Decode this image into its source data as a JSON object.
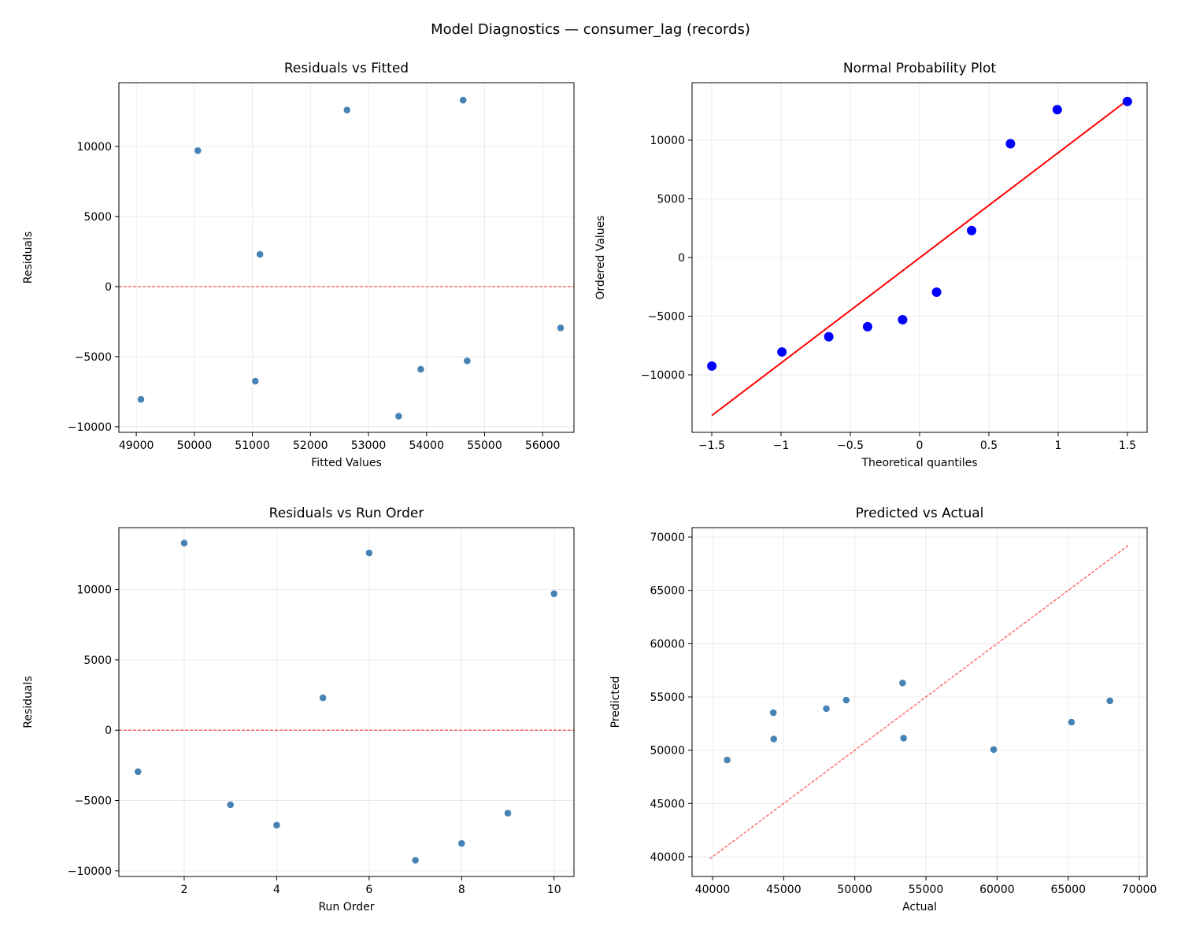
{
  "suptitle": "Model Diagnostics — consumer_lag (records)",
  "colors": {
    "points": "#4682b4",
    "qq_points": "#0000ff",
    "qq_line": "#ff0000",
    "ref_line": "#ff0000"
  },
  "chart_data": [
    {
      "type": "scatter",
      "title": "Residuals vs Fitted",
      "xlabel": "Fitted Values",
      "ylabel": "Residuals",
      "x": [
        49080,
        50060,
        51050,
        51130,
        52630,
        53520,
        53900,
        54630,
        54700,
        56310
      ],
      "y": [
        -8050,
        9700,
        -6750,
        2300,
        12600,
        -9250,
        -5900,
        13300,
        -5300,
        -2950
      ],
      "xlim": [
        48700,
        56540
      ],
      "ylim": [
        -10400,
        14550
      ],
      "xticks": [
        49000,
        50000,
        51000,
        52000,
        53000,
        54000,
        55000,
        56000
      ],
      "yticks": [
        -10000,
        -5000,
        0,
        5000,
        10000
      ],
      "hline": 0,
      "grid": true
    },
    {
      "type": "scatter",
      "title": "Normal Probability Plot",
      "xlabel": "Theoretical quantiles",
      "ylabel": "Ordered Values",
      "x": [
        -1.4993,
        -0.9935,
        -0.6554,
        -0.3754,
        -0.1226,
        0.1226,
        0.3754,
        0.6554,
        0.9935,
        1.4993
      ],
      "y": [
        -9250,
        -8050,
        -6750,
        -5900,
        -5300,
        -2950,
        2300,
        9700,
        12600,
        13300
      ],
      "xlim": [
        -1.642,
        1.642
      ],
      "ylim": [
        -14900,
        14900
      ],
      "xticks": [
        -1.5,
        -1.0,
        -0.5,
        0.0,
        0.5,
        1.0,
        1.5
      ],
      "yticks": [
        -10000,
        -5000,
        0,
        5000,
        10000
      ],
      "fit_line": true,
      "grid": true
    },
    {
      "type": "scatter",
      "title": "Residuals vs Run Order",
      "xlabel": "Run Order",
      "ylabel": "Residuals",
      "x": [
        1,
        2,
        3,
        4,
        5,
        6,
        7,
        8,
        9,
        10
      ],
      "y": [
        -2950,
        13300,
        -5300,
        -6750,
        2300,
        12600,
        -9250,
        -8050,
        -5900,
        9700
      ],
      "xlim": [
        0.587,
        10.43
      ],
      "ylim": [
        -10400,
        14400
      ],
      "xticks": [
        2,
        4,
        6,
        8,
        10
      ],
      "yticks": [
        -10000,
        -5000,
        0,
        5000,
        10000
      ],
      "hline": 0,
      "grid": true
    },
    {
      "type": "scatter",
      "title": "Predicted vs Actual",
      "xlabel": "Actual",
      "ylabel": "Predicted",
      "x": [
        53360,
        67930,
        49400,
        44300,
        53430,
        65230,
        44270,
        41030,
        48000,
        59760
      ],
      "y": [
        56310,
        54630,
        54700,
        51050,
        51130,
        52630,
        53520,
        49080,
        53900,
        50060
      ],
      "xlim": [
        38560,
        70550
      ],
      "ylim": [
        38150,
        70887
      ],
      "xticks": [
        40000,
        45000,
        50000,
        55000,
        60000,
        65000,
        70000
      ],
      "yticks": [
        40000,
        45000,
        50000,
        55000,
        60000,
        65000,
        70000
      ],
      "identity_line": [
        39800,
        69300
      ],
      "grid": true
    }
  ]
}
